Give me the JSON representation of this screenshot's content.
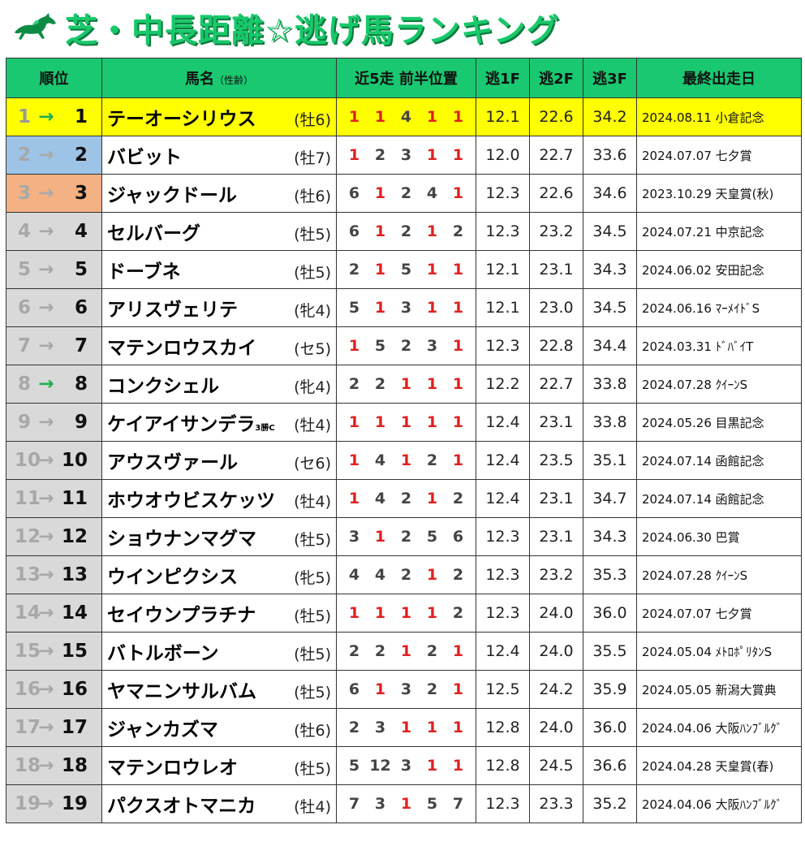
{
  "title": "芝・中長距離☆逃げ馬ランキング",
  "colors": {
    "header_bg": "#19c870",
    "title_green": "#18c86a",
    "highlight": "#ffff00",
    "rank2": "#9dc3e6",
    "rank3": "#f4b183",
    "pos_one": "#e02020"
  },
  "headers": {
    "rank": "順位",
    "name": "馬名",
    "name_sub": "（性齢）",
    "pos": "近5走 前半位置",
    "f1": "逃1F",
    "f2": "逃2F",
    "f3": "逃3F",
    "last": "最終出走日"
  },
  "rows": [
    {
      "prev": "1",
      "arrow": "→",
      "cur": "1",
      "up": true,
      "name": "テーオーシリウス",
      "sub": "",
      "age": "(牡6)",
      "pos": [
        "1",
        "1",
        "4",
        "1",
        "1"
      ],
      "f1": "12.1",
      "f2": "22.6",
      "f3": "34.2",
      "date": "2024.08.11 小倉記念",
      "style": "hl"
    },
    {
      "prev": "2",
      "arrow": "→",
      "cur": "2",
      "up": false,
      "name": "バビット",
      "sub": "",
      "age": "(牡7)",
      "pos": [
        "1",
        "2",
        "3",
        "1",
        "1"
      ],
      "f1": "12.0",
      "f2": "22.7",
      "f3": "33.6",
      "date": "2024.07.07 七夕賞",
      "style": "blue"
    },
    {
      "prev": "3",
      "arrow": "→",
      "cur": "3",
      "up": false,
      "name": "ジャックドール",
      "sub": "",
      "age": "(牡6)",
      "pos": [
        "6",
        "1",
        "2",
        "4",
        "1"
      ],
      "f1": "12.3",
      "f2": "22.6",
      "f3": "34.6",
      "date": "2023.10.29 天皇賞(秋)",
      "style": "orange"
    },
    {
      "prev": "4",
      "arrow": "→",
      "cur": "4",
      "up": false,
      "name": "セルバーグ",
      "sub": "",
      "age": "(牡5)",
      "pos": [
        "6",
        "1",
        "2",
        "1",
        "2"
      ],
      "f1": "12.3",
      "f2": "23.2",
      "f3": "34.5",
      "date": "2024.07.21 中京記念",
      "style": ""
    },
    {
      "prev": "5",
      "arrow": "→",
      "cur": "5",
      "up": false,
      "name": "ドーブネ",
      "sub": "",
      "age": "(牡5)",
      "pos": [
        "2",
        "1",
        "5",
        "1",
        "1"
      ],
      "f1": "12.1",
      "f2": "23.1",
      "f3": "34.3",
      "date": "2024.06.02 安田記念",
      "style": ""
    },
    {
      "prev": "6",
      "arrow": "→",
      "cur": "6",
      "up": false,
      "name": "アリスヴェリテ",
      "sub": "",
      "age": "(牝4)",
      "pos": [
        "5",
        "1",
        "3",
        "1",
        "1"
      ],
      "f1": "12.1",
      "f2": "23.0",
      "f3": "34.5",
      "date": "2024.06.16 ﾏｰﾒｲﾄﾞS",
      "style": ""
    },
    {
      "prev": "7",
      "arrow": "→",
      "cur": "7",
      "up": false,
      "name": "マテンロウスカイ",
      "sub": "",
      "age": "(セ5)",
      "pos": [
        "1",
        "5",
        "2",
        "3",
        "1"
      ],
      "f1": "12.3",
      "f2": "22.8",
      "f3": "34.4",
      "date": "2024.03.31 ﾄﾞﾊﾞｲT",
      "style": ""
    },
    {
      "prev": "8",
      "arrow": "→",
      "cur": "8",
      "up": true,
      "name": "コンクシェル",
      "sub": "",
      "age": "(牝4)",
      "pos": [
        "2",
        "2",
        "1",
        "1",
        "1"
      ],
      "f1": "12.2",
      "f2": "22.7",
      "f3": "33.8",
      "date": "2024.07.28 ｸｲｰﾝS",
      "style": ""
    },
    {
      "prev": "9",
      "arrow": "→",
      "cur": "9",
      "up": false,
      "name": "ケイアイサンデラ",
      "sub": "3勝C",
      "age": "(牡4)",
      "pos": [
        "1",
        "1",
        "1",
        "1",
        "1"
      ],
      "f1": "12.4",
      "f2": "23.1",
      "f3": "33.8",
      "date": "2024.05.26 目黒記念",
      "style": ""
    },
    {
      "prev": "10",
      "arrow": "→",
      "cur": "10",
      "up": false,
      "name": "アウスヴァール",
      "sub": "",
      "age": "(セ6)",
      "pos": [
        "1",
        "4",
        "1",
        "2",
        "1"
      ],
      "f1": "12.4",
      "f2": "23.5",
      "f3": "35.1",
      "date": "2024.07.14 函館記念",
      "style": ""
    },
    {
      "prev": "11",
      "arrow": "→",
      "cur": "11",
      "up": false,
      "name": "ホウオウビスケッツ",
      "sub": "",
      "age": "(牡4)",
      "pos": [
        "1",
        "4",
        "2",
        "1",
        "2"
      ],
      "f1": "12.4",
      "f2": "23.1",
      "f3": "34.7",
      "date": "2024.07.14 函館記念",
      "style": ""
    },
    {
      "prev": "12",
      "arrow": "→",
      "cur": "12",
      "up": false,
      "name": "ショウナンマグマ",
      "sub": "",
      "age": "(牡5)",
      "pos": [
        "3",
        "1",
        "2",
        "5",
        "6"
      ],
      "f1": "12.3",
      "f2": "23.1",
      "f3": "34.3",
      "date": "2024.06.30 巴賞",
      "style": ""
    },
    {
      "prev": "13",
      "arrow": "→",
      "cur": "13",
      "up": false,
      "name": "ウインピクシス",
      "sub": "",
      "age": "(牝5)",
      "pos": [
        "4",
        "4",
        "2",
        "1",
        "2"
      ],
      "f1": "12.3",
      "f2": "23.2",
      "f3": "35.3",
      "date": "2024.07.28 ｸｲｰﾝS",
      "style": ""
    },
    {
      "prev": "14",
      "arrow": "→",
      "cur": "14",
      "up": false,
      "name": "セイウンプラチナ",
      "sub": "",
      "age": "(牡5)",
      "pos": [
        "1",
        "1",
        "1",
        "1",
        "2"
      ],
      "f1": "12.3",
      "f2": "24.0",
      "f3": "36.0",
      "date": "2024.07.07 七夕賞",
      "style": ""
    },
    {
      "prev": "15",
      "arrow": "→",
      "cur": "15",
      "up": false,
      "name": "バトルボーン",
      "sub": "",
      "age": "(牡5)",
      "pos": [
        "2",
        "2",
        "1",
        "2",
        "1"
      ],
      "f1": "12.4",
      "f2": "24.0",
      "f3": "35.5",
      "date": "2024.05.04 ﾒﾄﾛﾎﾟﾘﾀﾝS",
      "style": ""
    },
    {
      "prev": "16",
      "arrow": "→",
      "cur": "16",
      "up": false,
      "name": "ヤマニンサルバム",
      "sub": "",
      "age": "(牡5)",
      "pos": [
        "6",
        "1",
        "3",
        "2",
        "1"
      ],
      "f1": "12.5",
      "f2": "24.2",
      "f3": "35.9",
      "date": "2024.05.05 新潟大賞典",
      "style": ""
    },
    {
      "prev": "17",
      "arrow": "→",
      "cur": "17",
      "up": false,
      "name": "ジャンカズマ",
      "sub": "",
      "age": "(牡6)",
      "pos": [
        "2",
        "3",
        "1",
        "1",
        "1"
      ],
      "f1": "12.8",
      "f2": "24.0",
      "f3": "36.0",
      "date": "2024.04.06 大阪ﾊﾝﾌﾞﾙｸﾞ",
      "style": ""
    },
    {
      "prev": "18",
      "arrow": "→",
      "cur": "18",
      "up": false,
      "name": "マテンロウレオ",
      "sub": "",
      "age": "(牡5)",
      "pos": [
        "5",
        "12",
        "3",
        "1",
        "1"
      ],
      "f1": "12.8",
      "f2": "24.5",
      "f3": "36.6",
      "date": "2024.04.28 天皇賞(春)",
      "style": ""
    },
    {
      "prev": "19",
      "arrow": "→",
      "cur": "19",
      "up": false,
      "name": "パクスオトマニカ",
      "sub": "",
      "age": "(牡4)",
      "pos": [
        "7",
        "3",
        "1",
        "5",
        "7"
      ],
      "f1": "12.3",
      "f2": "23.3",
      "f3": "35.2",
      "date": "2024.04.06 大阪ﾊﾝﾌﾞﾙｸﾞ",
      "style": ""
    }
  ]
}
